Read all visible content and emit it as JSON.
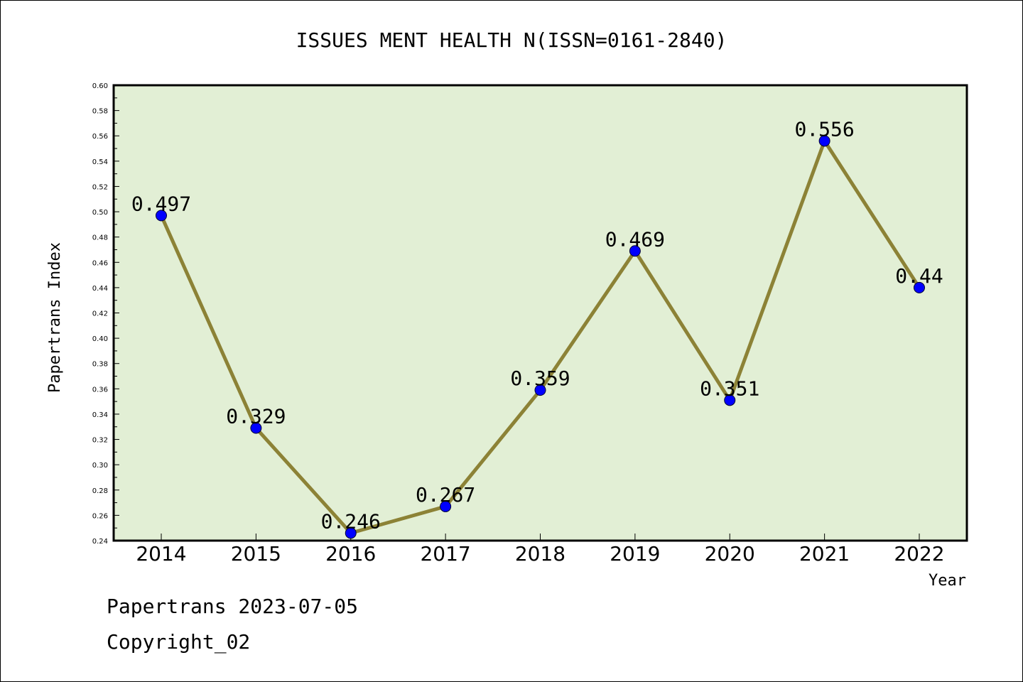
{
  "chart_data": {
    "type": "line",
    "title": "ISSUES MENT HEALTH N(ISSN=0161-2840)",
    "xlabel": "Year",
    "ylabel": "Papertrans Index",
    "categories": [
      "2014",
      "2015",
      "2016",
      "2017",
      "2018",
      "2019",
      "2020",
      "2021",
      "2022"
    ],
    "values": [
      0.497,
      0.329,
      0.246,
      0.267,
      0.359,
      0.469,
      0.351,
      0.556,
      0.44
    ],
    "data_labels": [
      "0.497",
      "0.329",
      "0.246",
      "0.267",
      "0.359",
      "0.469",
      "0.351",
      "0.556",
      "0.44"
    ],
    "ylim": [
      0.24,
      0.6
    ],
    "yticks": [
      "0.24",
      "0.26",
      "0.28",
      "0.30",
      "0.32",
      "0.34",
      "0.36",
      "0.38",
      "0.40",
      "0.42",
      "0.44",
      "0.46",
      "0.48",
      "0.50",
      "0.52",
      "0.54",
      "0.56",
      "0.58",
      "0.60"
    ],
    "grid": false,
    "colors": {
      "plot_background": "#e2efd5",
      "line": "#8c8236",
      "marker": "#0000ff"
    }
  },
  "footer": {
    "date_line": "Papertrans 2023-07-05",
    "copyright": "Copyright_02"
  }
}
